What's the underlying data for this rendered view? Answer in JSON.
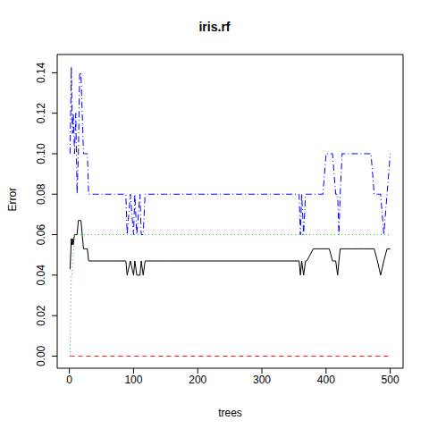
{
  "chart_data": {
    "type": "line",
    "title": "iris.rf",
    "x_label": "trees",
    "y_label": "Error",
    "x": [
      1,
      2,
      3,
      4,
      5,
      6,
      8,
      10,
      12,
      14,
      16,
      18,
      20,
      22,
      25,
      28,
      30,
      35,
      40,
      50,
      60,
      70,
      80,
      88,
      90,
      95,
      100,
      102,
      105,
      110,
      112,
      115,
      118,
      120,
      150,
      200,
      250,
      300,
      350,
      358,
      360,
      362,
      365,
      368,
      370,
      380,
      390,
      395,
      400,
      405,
      410,
      415,
      418,
      420,
      422,
      425,
      430,
      440,
      450,
      460,
      470,
      475,
      480,
      485,
      490,
      495,
      500
    ],
    "xlim": [
      -19,
      520
    ],
    "xticks": [
      0,
      100,
      200,
      300,
      400,
      500
    ],
    "ylim": [
      -0.006,
      0.149
    ],
    "yticks": [
      {
        "value": 0,
        "label": "0.00"
      },
      {
        "value": 0.02,
        "label": "0.02"
      },
      {
        "value": 0.04,
        "label": "0.04"
      },
      {
        "value": 0.06,
        "label": "0.06"
      },
      {
        "value": 0.08,
        "label": "0.08"
      },
      {
        "value": 0.1,
        "label": "0.10"
      },
      {
        "value": 0.12,
        "label": "0.12"
      },
      {
        "value": 0.14,
        "label": "0.14"
      }
    ],
    "series": [
      {
        "color": "#000000",
        "line_style": "solid",
        "values": [
          0.043,
          0.05,
          0.058,
          0.055,
          0.058,
          0.055,
          0.06,
          0.06,
          0.06,
          0.067,
          0.067,
          0.067,
          0.06,
          0.053,
          0.053,
          0.053,
          0.047,
          0.047,
          0.047,
          0.047,
          0.047,
          0.047,
          0.047,
          0.047,
          0.04,
          0.047,
          0.04,
          0.047,
          0.04,
          0.04,
          0.047,
          0.04,
          0.047,
          0.047,
          0.047,
          0.047,
          0.047,
          0.047,
          0.047,
          0.047,
          0.04,
          0.047,
          0.04,
          0.047,
          0.047,
          0.053,
          0.053,
          0.053,
          0.053,
          0.053,
          0.047,
          0.047,
          0.04,
          0.047,
          0.053,
          0.053,
          0.053,
          0.053,
          0.053,
          0.053,
          0.053,
          0.053,
          0.047,
          0.04,
          0.047,
          0.053,
          0.053
        ]
      },
      {
        "color": "#ff0000",
        "line_style": "dashed",
        "values": [
          0,
          0,
          0,
          0,
          0,
          0,
          0,
          0,
          0,
          0,
          0,
          0,
          0,
          0,
          0,
          0,
          0,
          0,
          0,
          0,
          0,
          0,
          0,
          0,
          0,
          0,
          0,
          0,
          0,
          0,
          0,
          0,
          0,
          0,
          0,
          0,
          0,
          0,
          0,
          0,
          0,
          0,
          0,
          0,
          0,
          0,
          0,
          0,
          0,
          0,
          0,
          0,
          0,
          0,
          0,
          0,
          0,
          0,
          0,
          0,
          0,
          0,
          0,
          0,
          0,
          0,
          0
        ]
      },
      {
        "color": "#00cd00",
        "line_style": "dotted",
        "values": [
          0,
          0.02,
          0.04,
          0.04,
          0.05,
          0.05,
          0.06,
          0.06,
          0.06,
          0.06,
          0.06,
          0.06,
          0.06,
          0.06,
          0.06,
          0.06,
          0.06,
          0.06,
          0.06,
          0.06,
          0.06,
          0.06,
          0.06,
          0.06,
          0.06,
          0.06,
          0.06,
          0.06,
          0.06,
          0.06,
          0.06,
          0.06,
          0.06,
          0.06,
          0.06,
          0.06,
          0.06,
          0.06,
          0.06,
          0.06,
          0.06,
          0.06,
          0.06,
          0.06,
          0.06,
          0.06,
          0.06,
          0.06,
          0.06,
          0.06,
          0.06,
          0.06,
          0.06,
          0.06,
          0.06,
          0.06,
          0.06,
          0.06,
          0.06,
          0.06,
          0.06,
          0.06,
          0.06,
          0.06,
          0.06,
          0.06,
          0.06
        ]
      },
      {
        "color": "#0000ff",
        "line_style": "dashdot",
        "values": [
          0.1,
          0.12,
          0.143,
          0.12,
          0.11,
          0.12,
          0.1,
          0.12,
          0.08,
          0.1,
          0.14,
          0.14,
          0.12,
          0.1,
          0.1,
          0.1,
          0.08,
          0.08,
          0.08,
          0.08,
          0.08,
          0.08,
          0.08,
          0.08,
          0.06,
          0.08,
          0.06,
          0.08,
          0.06,
          0.08,
          0.06,
          0.06,
          0.08,
          0.08,
          0.08,
          0.08,
          0.08,
          0.08,
          0.08,
          0.08,
          0.06,
          0.08,
          0.06,
          0.08,
          0.08,
          0.08,
          0.08,
          0.08,
          0.1,
          0.1,
          0.1,
          0.08,
          0.08,
          0.06,
          0.08,
          0.1,
          0.1,
          0.1,
          0.1,
          0.1,
          0.1,
          0.08,
          0.08,
          0.08,
          0.06,
          0.08,
          0.1
        ]
      }
    ]
  }
}
